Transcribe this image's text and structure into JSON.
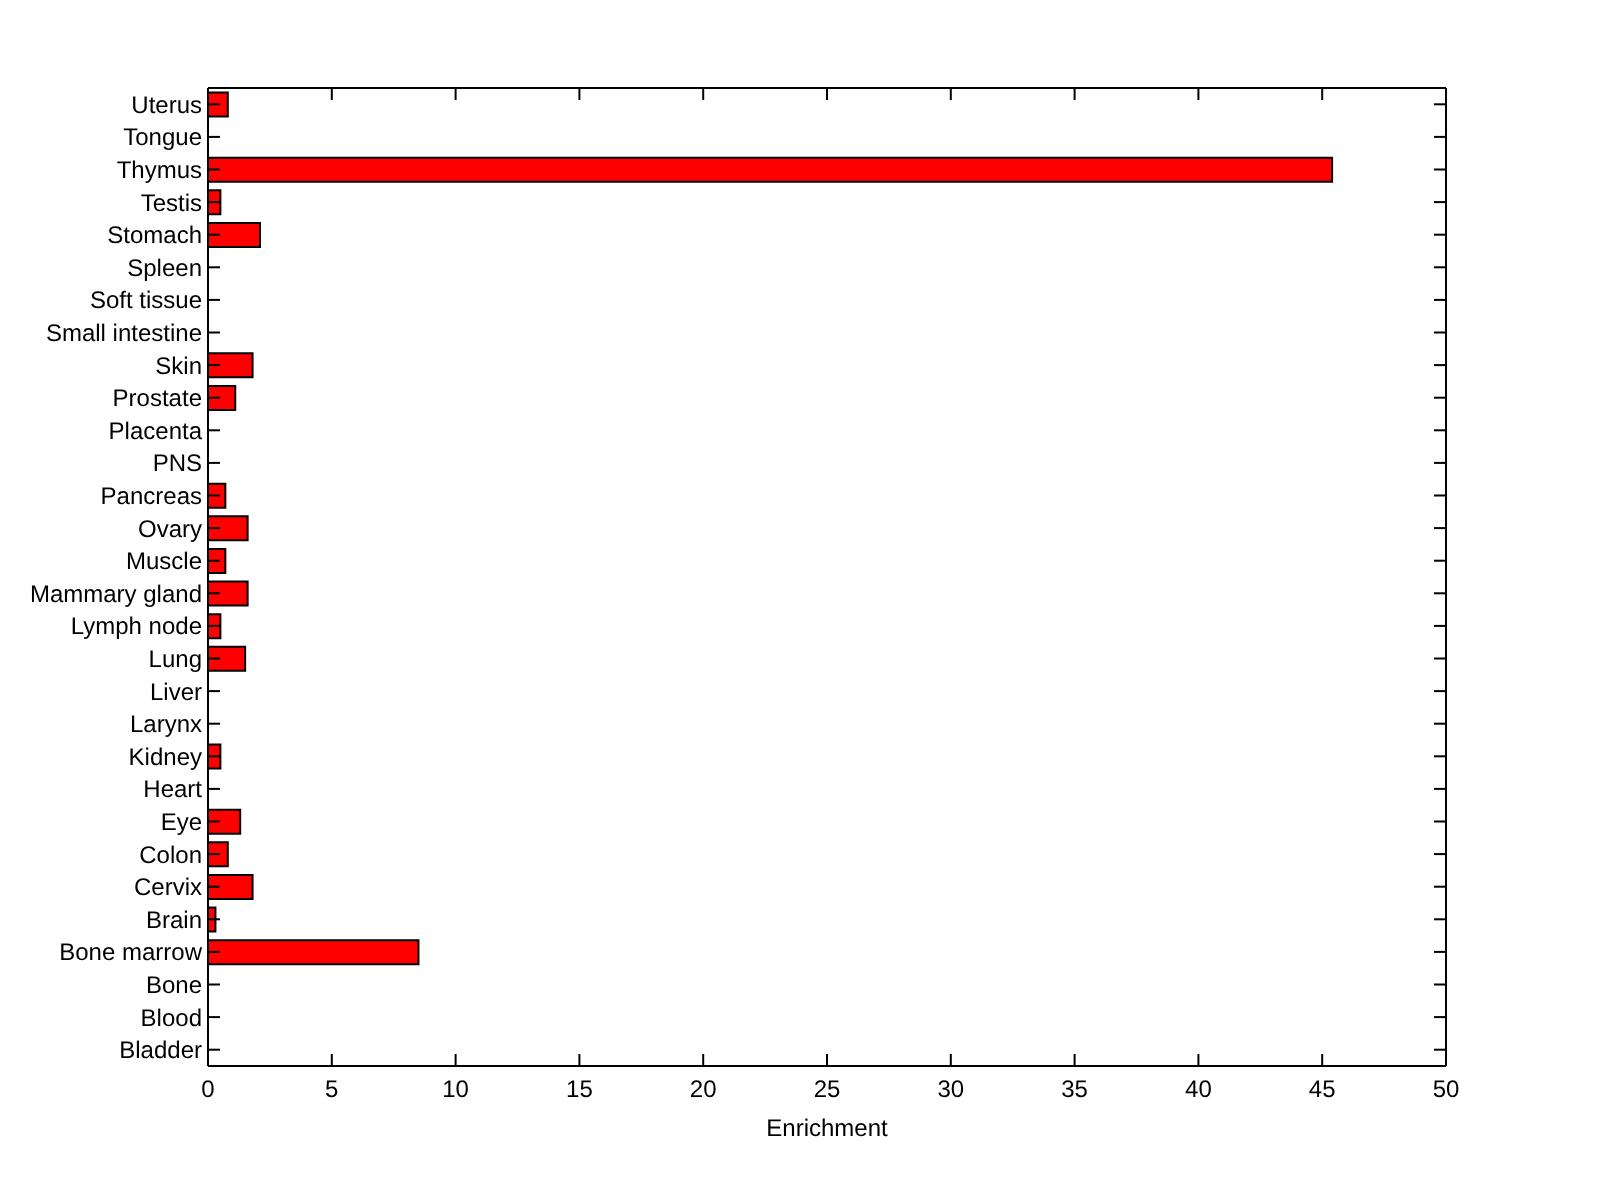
{
  "chart_data": {
    "type": "bar",
    "orientation": "horizontal",
    "xlabel": "Enrichment",
    "categories": [
      "Uterus",
      "Tongue",
      "Thymus",
      "Testis",
      "Stomach",
      "Spleen",
      "Soft tissue",
      "Small intestine",
      "Skin",
      "Prostate",
      "Placenta",
      "PNS",
      "Pancreas",
      "Ovary",
      "Muscle",
      "Mammary gland",
      "Lymph node",
      "Lung",
      "Liver",
      "Larynx",
      "Kidney",
      "Heart",
      "Eye",
      "Colon",
      "Cervix",
      "Brain",
      "Bone marrow",
      "Bone",
      "Blood",
      "Bladder"
    ],
    "values": [
      0.8,
      0,
      45.4,
      0.5,
      2.1,
      0,
      0,
      0,
      1.8,
      1.1,
      0,
      0,
      0.7,
      1.6,
      0.7,
      1.6,
      0.5,
      1.5,
      0,
      0,
      0.5,
      0,
      1.3,
      0.8,
      1.8,
      0.3,
      8.5,
      0,
      0,
      0
    ],
    "color": "#ff0000",
    "xlim": [
      0,
      50
    ],
    "xticks": [
      0,
      5,
      10,
      15,
      20,
      25,
      30,
      35,
      40,
      45,
      50
    ]
  }
}
